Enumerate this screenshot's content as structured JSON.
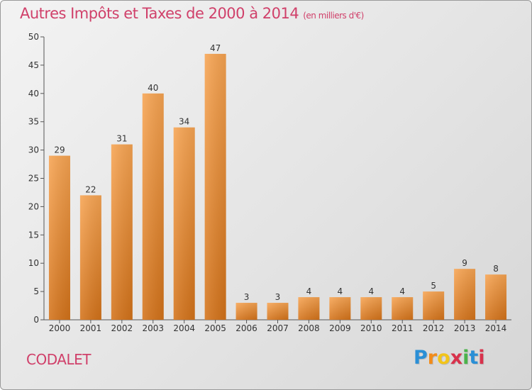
{
  "chart_data": {
    "type": "bar",
    "title": "Autres Impôts et Taxes de 2000 à 2014",
    "subtitle": "(en milliers d'€)",
    "categories": [
      "2000",
      "2001",
      "2002",
      "2003",
      "2004",
      "2005",
      "2006",
      "2007",
      "2008",
      "2009",
      "2010",
      "2011",
      "2012",
      "2013",
      "2014"
    ],
    "values": [
      29,
      22,
      31,
      40,
      34,
      47,
      3,
      3,
      4,
      4,
      4,
      4,
      5,
      9,
      8
    ],
    "ylim": [
      0,
      50
    ],
    "yticks": [
      0,
      5,
      10,
      15,
      20,
      25,
      30,
      35,
      40,
      45,
      50
    ],
    "grid": false,
    "bar_color": "#f0913a"
  },
  "footer": {
    "city": "CODALET",
    "logo": [
      "P",
      "r",
      "o",
      "x",
      "i",
      "t",
      "i"
    ],
    "logo_colors": [
      "#2a8fd6",
      "#f28c1a",
      "#f2c41a",
      "#d8324c",
      "#4bb34b",
      "#2a8fd6",
      "#d8324c"
    ]
  }
}
